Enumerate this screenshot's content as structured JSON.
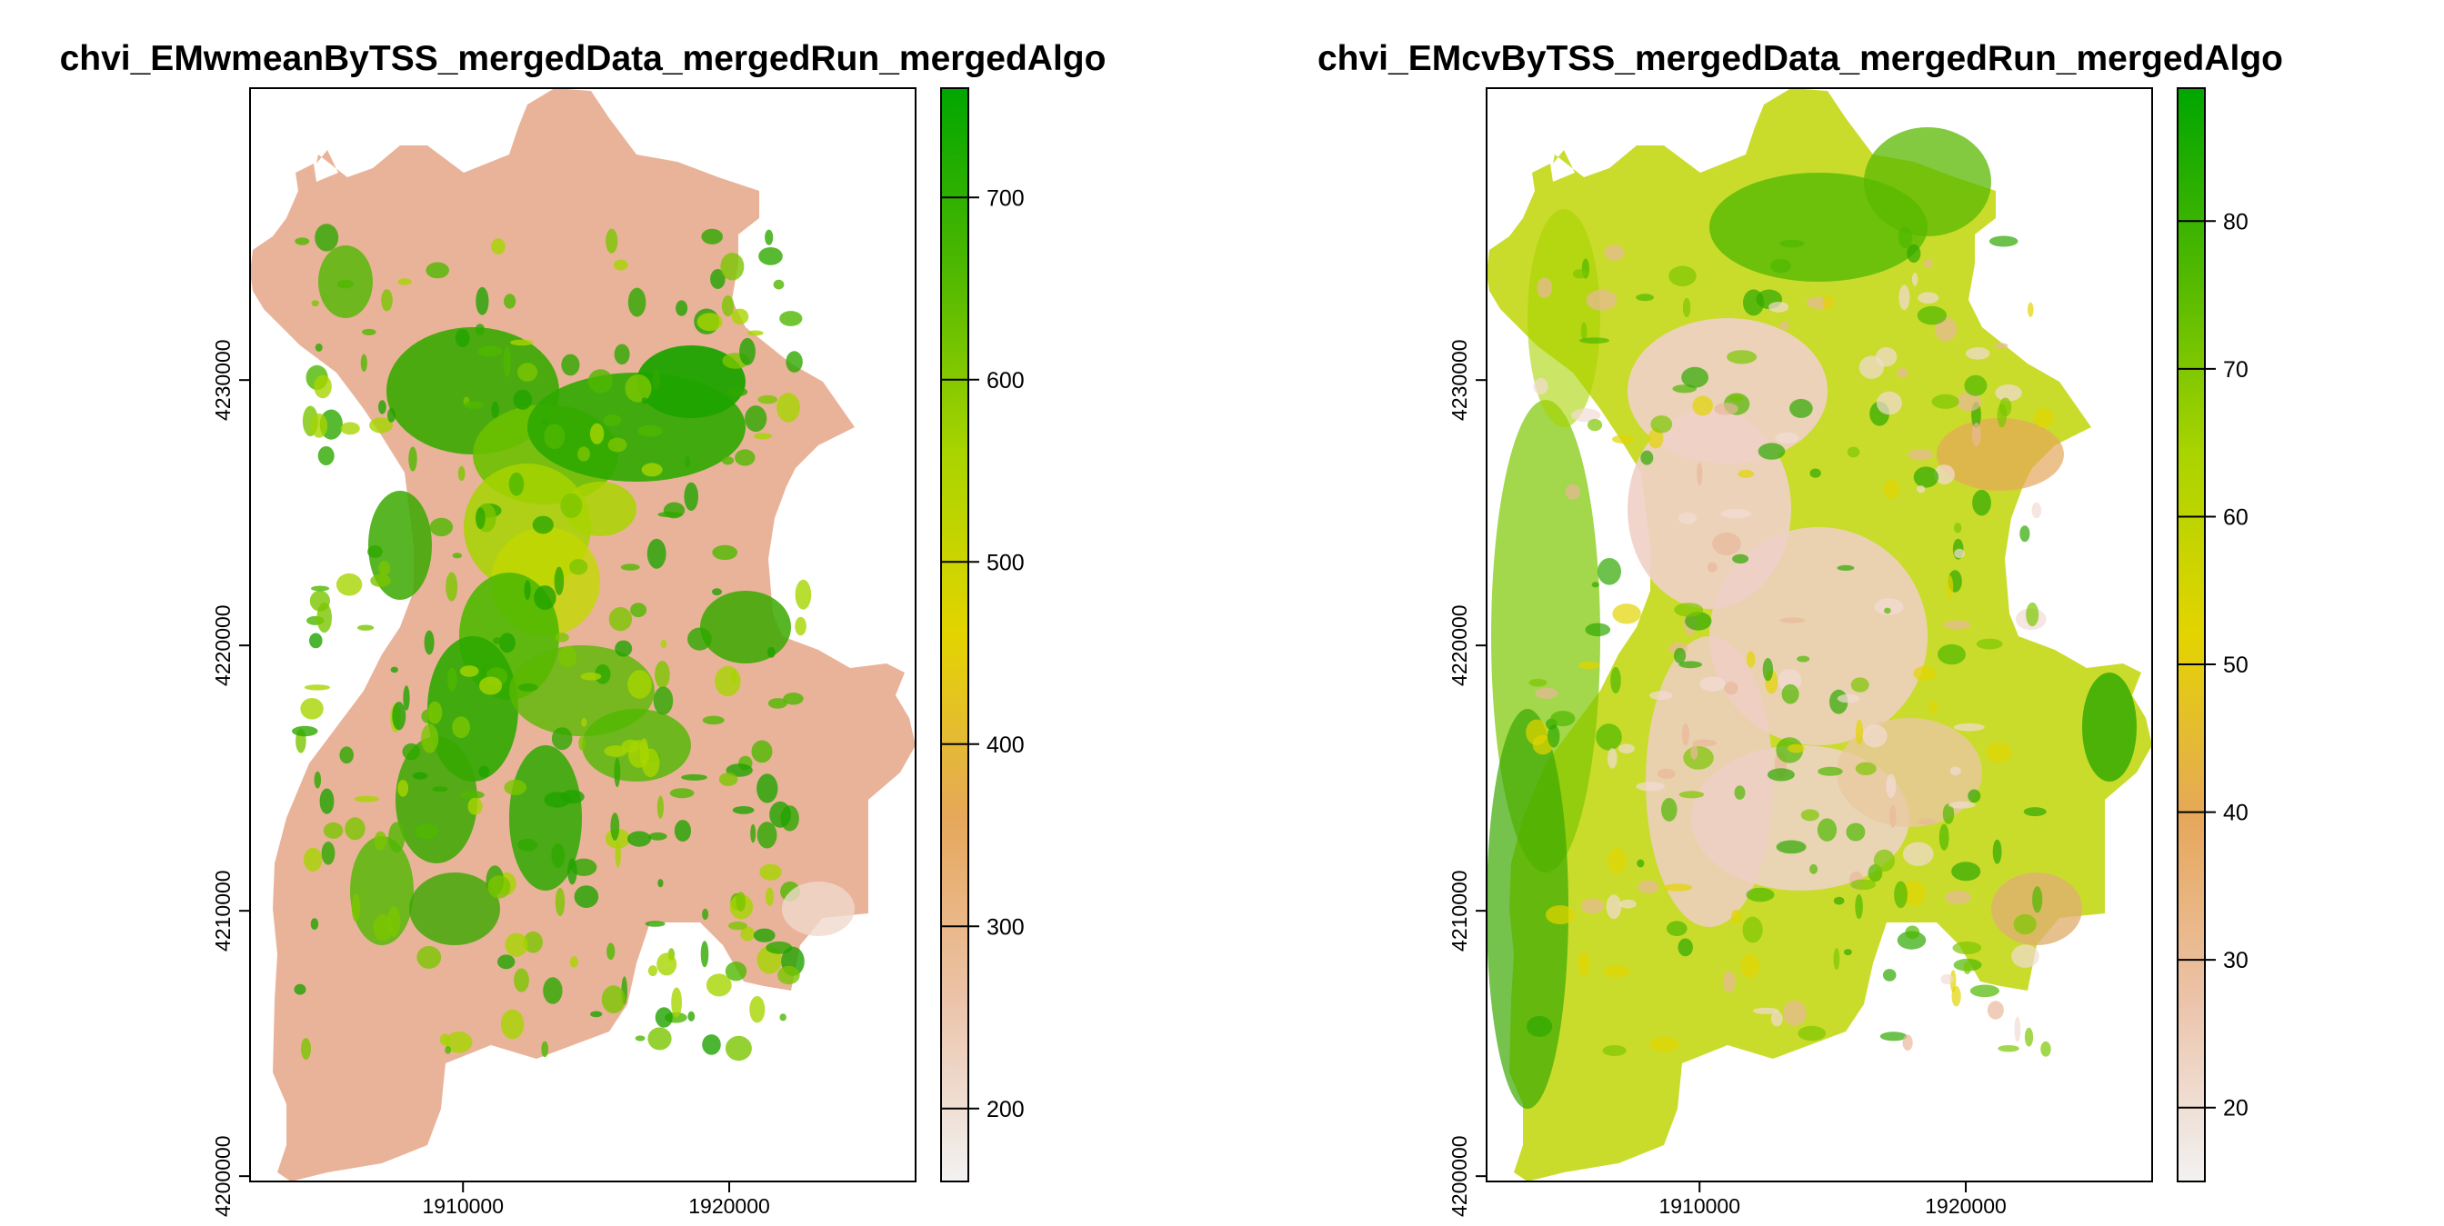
{
  "chart_data": [
    {
      "type": "heatmap",
      "title": "chvi_EMwmeanByTSS_mergedData_mergedRun_mergedAlgo",
      "x_ticks": [
        1910000,
        1920000
      ],
      "y_ticks": [
        4200000,
        4210000,
        4220000,
        4230000
      ],
      "xlim": [
        1902000,
        1927000
      ],
      "ylim": [
        4199800,
        4241000
      ],
      "colorbar": {
        "ticks": [
          200,
          300,
          400,
          500,
          600,
          700
        ],
        "range": [
          160,
          760
        ],
        "colors": [
          "#f2f2f2",
          "#ecc3a9",
          "#e6a75a",
          "#e3d400",
          "#a9d400",
          "#4fb800",
          "#00a600"
        ]
      }
    },
    {
      "type": "heatmap",
      "title": "chvi_EMcvByTSS_mergedData_mergedRun_mergedAlgo",
      "x_ticks": [
        1910000,
        1920000
      ],
      "y_ticks": [
        4200000,
        4210000,
        4220000,
        4230000
      ],
      "xlim": [
        1902000,
        1927000
      ],
      "ylim": [
        4199800,
        4241000
      ],
      "colorbar": {
        "ticks": [
          20,
          30,
          40,
          50,
          60,
          70,
          80
        ],
        "range": [
          15,
          89
        ],
        "colors": [
          "#f2f2f2",
          "#ecc3a9",
          "#e6a75a",
          "#e3d400",
          "#a9d400",
          "#4fb800",
          "#00a600"
        ]
      }
    }
  ]
}
